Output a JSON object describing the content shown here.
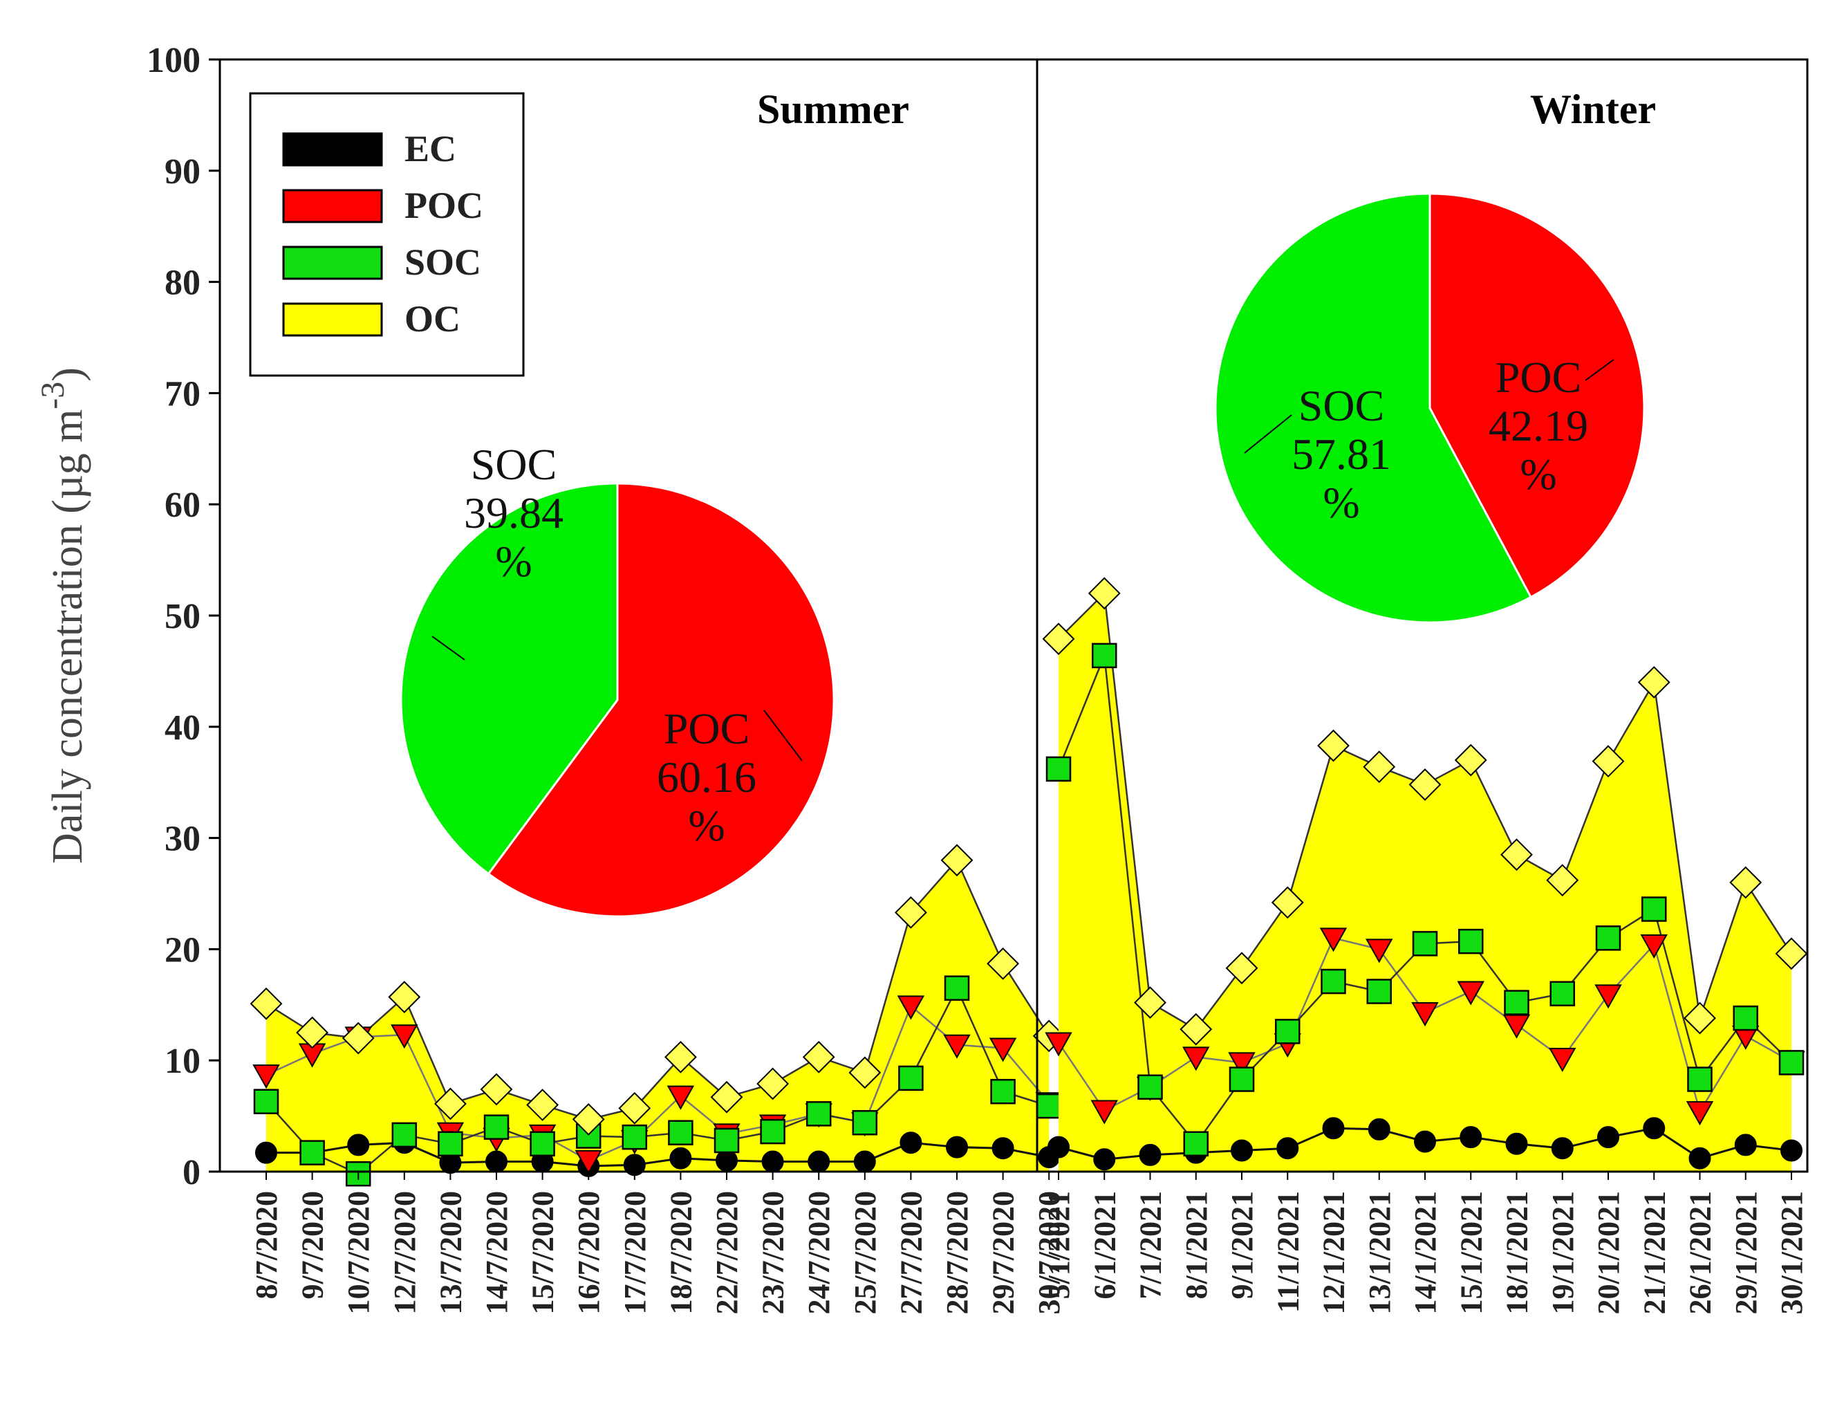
{
  "chart_data": {
    "type": "line",
    "subtype": "area-line-with-markers",
    "ylabel": "Daily concentration (µg m",
    "ylabel_sup": "-3",
    "ylabel_close": ")",
    "ylim": [
      0,
      100
    ],
    "yticks": [
      "0",
      "10",
      "20",
      "30",
      "40",
      "50",
      "60",
      "70",
      "80",
      "90",
      "100"
    ],
    "periods": [
      {
        "name": "Summer",
        "dates": [
          "8/7/2020",
          "9/7/2020",
          "10/7/2020",
          "12/7/2020",
          "13/7/2020",
          "14/7/2020",
          "15/7/2020",
          "16/7/2020",
          "17/7/2020",
          "18/7/2020",
          "22/7/2020",
          "23/7/2020",
          "24/7/2020",
          "25/7/2020",
          "27/7/2020",
          "28/7/2020",
          "29/7/2020",
          "30/7/2020"
        ],
        "series": {
          "EC": [
            1.7,
            1.7,
            2.4,
            2.6,
            0.8,
            0.9,
            0.9,
            0.5,
            0.6,
            1.2,
            1.0,
            0.9,
            0.9,
            0.9,
            2.6,
            2.2,
            2.1,
            1.3
          ],
          "POC": [
            8.7,
            10.6,
            12.1,
            12.3,
            3.5,
            3.0,
            3.3,
            1.0,
            2.8,
            6.8,
            3.4,
            4.2,
            5.2,
            4.4,
            14.9,
            11.4,
            11.1,
            6.2
          ],
          "SOC": [
            6.3,
            1.7,
            -0.2,
            3.3,
            2.5,
            4.0,
            2.5,
            3.2,
            3.1,
            3.5,
            2.8,
            3.6,
            5.2,
            4.4,
            8.4,
            16.5,
            7.2,
            5.9
          ],
          "OC": [
            15.1,
            12.5,
            12.0,
            15.7,
            6.1,
            7.4,
            6.0,
            4.7,
            5.7,
            10.3,
            6.7,
            7.9,
            10.3,
            8.9,
            23.3,
            28.0,
            18.7,
            12.2
          ]
        },
        "pie": {
          "slices": [
            {
              "label": "POC",
              "value": 60.16,
              "display": "60.16",
              "unit": "%"
            },
            {
              "label": "SOC",
              "value": 39.84,
              "display": "39.84",
              "unit": "%"
            }
          ]
        }
      },
      {
        "name": "Winter",
        "dates": [
          "5/1/2021",
          "6/1/2021",
          "7/1/2021",
          "8/1/2021",
          "9/1/2021",
          "11/1/2021",
          "12/1/2021",
          "13/1/2021",
          "14/1/2021",
          "15/1/2021",
          "18/1/2021",
          "19/1/2021",
          "20/1/2021",
          "21/1/2021",
          "26/1/2021",
          "29/1/2021",
          "30/1/2021"
        ],
        "series": {
          "EC": [
            2.2,
            1.1,
            1.5,
            1.7,
            1.9,
            2.1,
            3.9,
            3.8,
            2.7,
            3.1,
            2.5,
            2.1,
            3.1,
            3.9,
            1.2,
            2.4,
            1.9
          ],
          "POC": [
            11.6,
            5.5,
            7.6,
            10.3,
            9.8,
            11.5,
            21.0,
            20.0,
            14.3,
            16.2,
            13.2,
            10.2,
            15.9,
            20.4,
            5.4,
            12.2,
            9.9
          ],
          "SOC": [
            36.2,
            46.4,
            7.6,
            2.5,
            8.3,
            12.6,
            17.1,
            16.2,
            20.5,
            20.7,
            15.2,
            16.0,
            21.0,
            23.6,
            8.3,
            13.8,
            9.8
          ],
          "OC": [
            47.9,
            52.0,
            15.2,
            12.8,
            18.3,
            24.2,
            38.3,
            36.4,
            34.8,
            37.0,
            28.5,
            26.2,
            36.9,
            44.0,
            13.8,
            26.0,
            19.6
          ]
        },
        "pie": {
          "slices": [
            {
              "label": "POC",
              "value": 42.19,
              "display": "42.19",
              "unit": "%"
            },
            {
              "label": "SOC",
              "value": 57.81,
              "display": "57.81",
              "unit": "%"
            }
          ]
        }
      }
    ],
    "legend": {
      "position": "top-left",
      "entries": [
        {
          "label": "EC",
          "color": "#000000"
        },
        {
          "label": "POC",
          "color": "#ff0000"
        },
        {
          "label": "SOC",
          "color": "#00e000"
        },
        {
          "label": "OC",
          "color": "#ffff00"
        }
      ]
    },
    "colors": {
      "EC": "#000000",
      "POC": "#ff0000",
      "SOC": "#11dd11",
      "OC_fill": "#ffff00",
      "OC_marker": "#ffff55",
      "pie_POC": "#ff0000",
      "pie_SOC": "#00ee00"
    }
  }
}
